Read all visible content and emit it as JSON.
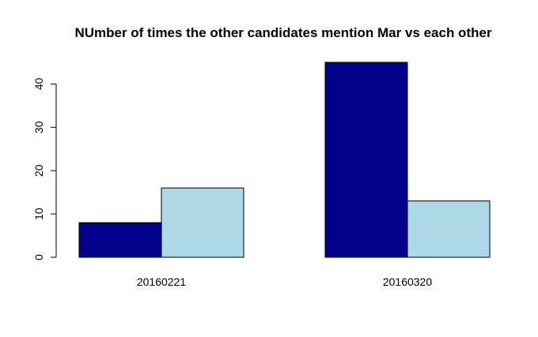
{
  "chart_data": {
    "type": "bar",
    "title": "NUmber of times the other candidates mention Mar vs each other",
    "xlabel": "",
    "ylabel": "",
    "categories": [
      "20160221",
      "20160320"
    ],
    "series": [
      {
        "values": [
          8,
          45
        ],
        "color": "#00008b"
      },
      {
        "values": [
          16,
          13
        ],
        "color": "#add8e6"
      }
    ],
    "ylim": [
      0,
      45
    ],
    "yticks": [
      0,
      10,
      20,
      30,
      40
    ],
    "grid": false,
    "legend": "none"
  }
}
